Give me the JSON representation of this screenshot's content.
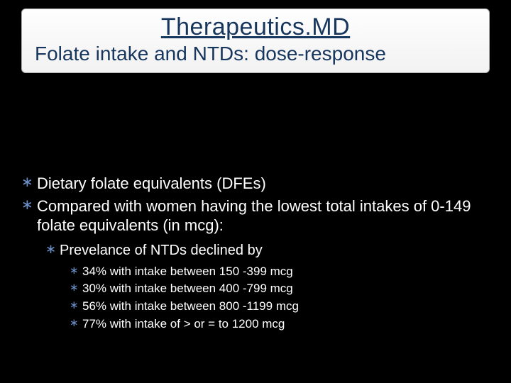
{
  "title": {
    "main": "Therapeutics.MD",
    "sub": "Folate intake and NTDs: dose-response"
  },
  "colors": {
    "background": "#000000",
    "title_text": "#17365d",
    "title_box_border": "#b0b0b0",
    "title_box_bg_top": "#fefefe",
    "title_box_bg_bottom": "#f2f2f2",
    "body_text": "#ffffff",
    "bullet_marker": "#6b8fc9"
  },
  "typography": {
    "title_main_size": 34,
    "title_sub_size": 28,
    "l1_size": 22,
    "l2_size": 20,
    "l3_size": 17
  },
  "bullets": {
    "l1": [
      "Dietary folate equivalents (DFEs)",
      "Compared with women having the lowest total intakes of 0-149 folate equivalents (in mcg):"
    ],
    "l2": "Prevelance of NTDs declined by",
    "l3": [
      "34% with intake between 150 -399 mcg",
      "30% with intake between 400 -799 mcg",
      "56% with intake between 800 -1199 mcg",
      "77% with intake of > or = to 1200 mcg"
    ]
  }
}
